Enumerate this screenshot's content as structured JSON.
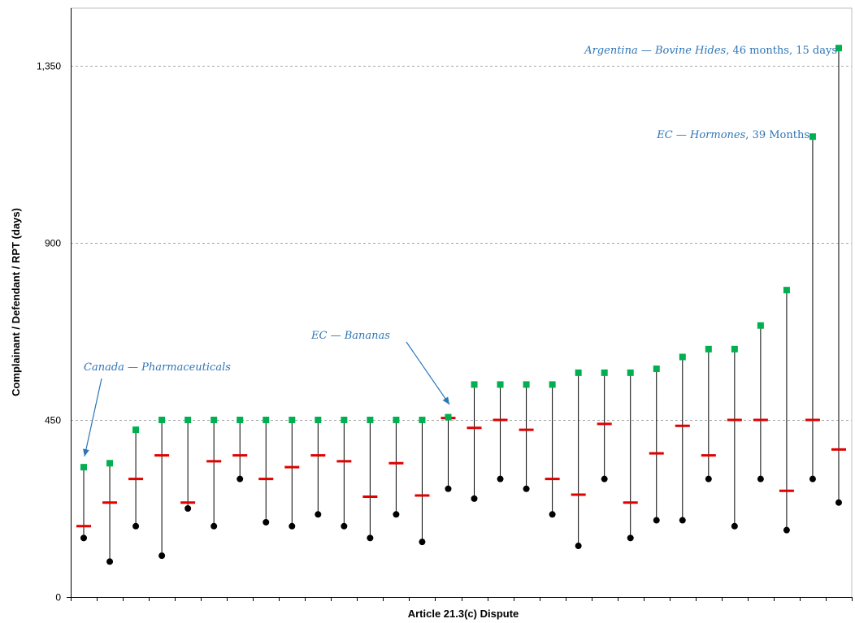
{
  "chart_data": {
    "type": "range",
    "xlabel": "Article 21.3(c) Dispute",
    "ylabel": "Complainant / Defendant / RPT (days)",
    "ylim": [
      0,
      1350
    ],
    "yticks": [
      0,
      450,
      900,
      1350
    ],
    "ytick_labels": [
      "0",
      "450",
      "900",
      "1,350"
    ],
    "grid": "horizontal dashed",
    "disputes": [
      {
        "high": 330,
        "low": 150,
        "rpt": 180
      },
      {
        "high": 340,
        "low": 90,
        "rpt": 240
      },
      {
        "high": 425,
        "low": 180,
        "rpt": 300
      },
      {
        "high": 450,
        "low": 105,
        "rpt": 360
      },
      {
        "high": 450,
        "low": 225,
        "rpt": 240
      },
      {
        "high": 450,
        "low": 180,
        "rpt": 345
      },
      {
        "high": 450,
        "low": 300,
        "rpt": 360
      },
      {
        "high": 450,
        "low": 190,
        "rpt": 300
      },
      {
        "high": 450,
        "low": 180,
        "rpt": 330
      },
      {
        "high": 450,
        "low": 210,
        "rpt": 360
      },
      {
        "high": 450,
        "low": 180,
        "rpt": 345
      },
      {
        "high": 450,
        "low": 150,
        "rpt": 255
      },
      {
        "high": 450,
        "low": 210,
        "rpt": 340
      },
      {
        "high": 450,
        "low": 140,
        "rpt": 258
      },
      {
        "high": 457,
        "low": 275,
        "rpt": 455
      },
      {
        "high": 540,
        "low": 250,
        "rpt": 430
      },
      {
        "high": 540,
        "low": 300,
        "rpt": 450
      },
      {
        "high": 540,
        "low": 275,
        "rpt": 425
      },
      {
        "high": 540,
        "low": 210,
        "rpt": 300
      },
      {
        "high": 570,
        "low": 130,
        "rpt": 260
      },
      {
        "high": 570,
        "low": 300,
        "rpt": 440
      },
      {
        "high": 570,
        "low": 150,
        "rpt": 240
      },
      {
        "high": 580,
        "low": 195,
        "rpt": 365
      },
      {
        "high": 610,
        "low": 195,
        "rpt": 435
      },
      {
        "high": 630,
        "low": 300,
        "rpt": 360
      },
      {
        "high": 630,
        "low": 180,
        "rpt": 450
      },
      {
        "high": 690,
        "low": 300,
        "rpt": 450
      },
      {
        "high": 780,
        "low": 170,
        "rpt": 270
      },
      {
        "high": 1170,
        "low": 300,
        "rpt": 450
      },
      {
        "high": 1395,
        "low": 240,
        "rpt": 375
      }
    ],
    "annotations": [
      {
        "italic": "Argentina — Bovine Hides",
        "rest": ", 46 months, 15 days",
        "dispute_index": 29
      },
      {
        "italic": "EC — Hormones",
        "rest": ", 39 Months",
        "dispute_index": 28
      },
      {
        "italic": "EC — Bananas",
        "rest": "",
        "dispute_index": 14
      },
      {
        "italic": "Canada — Pharmaceuticals",
        "rest": "",
        "dispute_index": 0
      }
    ],
    "colors": {
      "high": "#00b050",
      "low": "#000000",
      "rpt": "#e00000",
      "annotation": "#2e75b6",
      "grid": "#a6a6a6"
    }
  }
}
